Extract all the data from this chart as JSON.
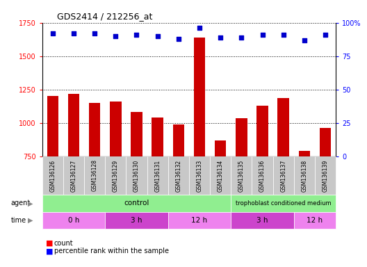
{
  "title": "GDS2414 / 212256_at",
  "samples": [
    "GSM136126",
    "GSM136127",
    "GSM136128",
    "GSM136129",
    "GSM136130",
    "GSM136131",
    "GSM136132",
    "GSM136133",
    "GSM136134",
    "GSM136135",
    "GSM136136",
    "GSM136137",
    "GSM136138",
    "GSM136139"
  ],
  "counts": [
    1200,
    1215,
    1150,
    1160,
    1080,
    1040,
    990,
    1640,
    870,
    1035,
    1130,
    1185,
    790,
    960
  ],
  "percentile_ranks": [
    92,
    92,
    92,
    90,
    91,
    90,
    88,
    96,
    89,
    89,
    91,
    91,
    87,
    91
  ],
  "ylim_left": [
    750,
    1750
  ],
  "ylim_right": [
    0,
    100
  ],
  "yticks_left": [
    750,
    1000,
    1250,
    1500,
    1750
  ],
  "yticks_right": [
    0,
    25,
    50,
    75,
    100
  ],
  "bar_color": "#cc0000",
  "dot_color": "#0000cc",
  "background_color": "#ffffff",
  "tick_bg_color": "#c8c8c8",
  "agent_green": "#90ee90",
  "time_purple_light": "#ee82ee",
  "time_purple_dark": "#cc44cc",
  "control_samples": 9,
  "tcm_samples": 5,
  "time_groups": [
    {
      "label": "0 h",
      "start": 0,
      "end": 3
    },
    {
      "label": "3 h",
      "start": 3,
      "end": 6
    },
    {
      "label": "12 h",
      "start": 6,
      "end": 9
    },
    {
      "label": "3 h",
      "start": 9,
      "end": 12
    },
    {
      "label": "12 h",
      "start": 12,
      "end": 14
    }
  ],
  "time_colors": [
    "#ee82ee",
    "#cc44cc",
    "#ee82ee",
    "#cc44cc",
    "#ee82ee"
  ],
  "legend_count_label": "count",
  "legend_pct_label": "percentile rank within the sample",
  "agent_label": "agent",
  "time_label": "time"
}
